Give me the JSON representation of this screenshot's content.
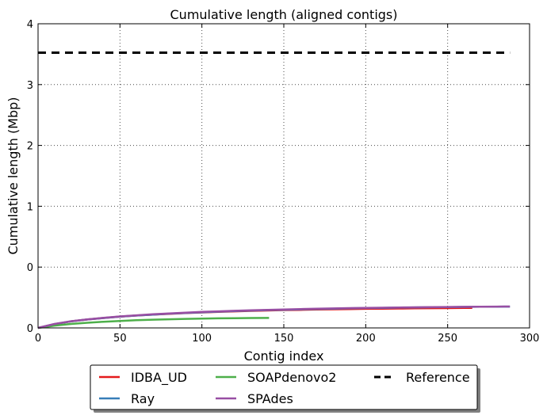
{
  "chart_data": {
    "type": "line",
    "title": "Cumulative length (aligned contigs)",
    "xlabel": "Contig index",
    "ylabel": "Cumulative length (Mbp)",
    "xlim": [
      0,
      300
    ],
    "ylim": [
      0,
      4
    ],
    "xticks": [
      "0",
      "50",
      "100",
      "150",
      "200",
      "250",
      "300"
    ],
    "yticks": [
      "0",
      "0",
      "1",
      "2",
      "3",
      "4"
    ],
    "grid": true,
    "legend_position": "bottom, below axes",
    "series": [
      {
        "name": "IDBA_UD",
        "color": "#e41a1c",
        "style": "solid",
        "x": [
          0,
          10,
          20,
          30,
          40,
          50,
          60,
          70,
          80,
          90,
          100,
          110,
          120,
          130,
          140,
          150,
          160,
          170,
          180,
          190,
          200,
          210,
          220,
          230,
          240,
          250,
          260,
          265
        ],
        "y": [
          0.0,
          0.05,
          0.085,
          0.11,
          0.13,
          0.148,
          0.162,
          0.174,
          0.185,
          0.195,
          0.203,
          0.211,
          0.218,
          0.224,
          0.229,
          0.234,
          0.238,
          0.242,
          0.245,
          0.248,
          0.251,
          0.253,
          0.255,
          0.257,
          0.259,
          0.26,
          0.262,
          0.262
        ]
      },
      {
        "name": "Ray",
        "color": "#377eb8",
        "style": "solid",
        "x": [
          0,
          10,
          20,
          30,
          40,
          50,
          60,
          70,
          80,
          90,
          100,
          110,
          120,
          130,
          140,
          150,
          160,
          170,
          180,
          190,
          200,
          210,
          220,
          230,
          240,
          250,
          260,
          270,
          280,
          288
        ],
        "y": [
          0.0,
          0.05,
          0.085,
          0.11,
          0.13,
          0.148,
          0.162,
          0.175,
          0.187,
          0.197,
          0.206,
          0.214,
          0.221,
          0.228,
          0.234,
          0.239,
          0.244,
          0.249,
          0.253,
          0.257,
          0.261,
          0.264,
          0.267,
          0.27,
          0.272,
          0.274,
          0.276,
          0.278,
          0.279,
          0.28
        ]
      },
      {
        "name": "SOAPdenovo2",
        "color": "#4daf4a",
        "style": "solid",
        "x": [
          0,
          10,
          20,
          30,
          40,
          50,
          60,
          70,
          80,
          90,
          100,
          110,
          120,
          130,
          141
        ],
        "y": [
          0.0,
          0.03,
          0.052,
          0.068,
          0.081,
          0.092,
          0.101,
          0.108,
          0.114,
          0.119,
          0.123,
          0.126,
          0.128,
          0.13,
          0.131
        ]
      },
      {
        "name": "SPAdes",
        "color": "#984ea3",
        "style": "solid",
        "x": [
          0,
          10,
          20,
          30,
          40,
          50,
          60,
          70,
          80,
          90,
          100,
          110,
          120,
          130,
          140,
          150,
          160,
          170,
          180,
          190,
          200,
          210,
          220,
          230,
          240,
          250,
          260,
          270,
          280,
          288
        ],
        "y": [
          0.0,
          0.052,
          0.088,
          0.113,
          0.133,
          0.151,
          0.166,
          0.179,
          0.191,
          0.201,
          0.21,
          0.218,
          0.225,
          0.232,
          0.238,
          0.243,
          0.248,
          0.252,
          0.256,
          0.26,
          0.263,
          0.266,
          0.269,
          0.271,
          0.273,
          0.275,
          0.277,
          0.279,
          0.28,
          0.281
        ]
      },
      {
        "name": "Reference",
        "color": "#000000",
        "style": "dashed",
        "x": [
          0,
          288
        ],
        "y": [
          3.62,
          3.62
        ]
      }
    ]
  },
  "legend": {
    "items": [
      {
        "label": "IDBA_UD",
        "color": "#e41a1c",
        "style": "solid"
      },
      {
        "label": "Ray",
        "color": "#377eb8",
        "style": "solid"
      },
      {
        "label": "SOAPdenovo2",
        "color": "#4daf4a",
        "style": "solid"
      },
      {
        "label": "SPAdes",
        "color": "#984ea3",
        "style": "solid"
      },
      {
        "label": "Reference",
        "color": "#000000",
        "style": "dashed"
      }
    ]
  }
}
